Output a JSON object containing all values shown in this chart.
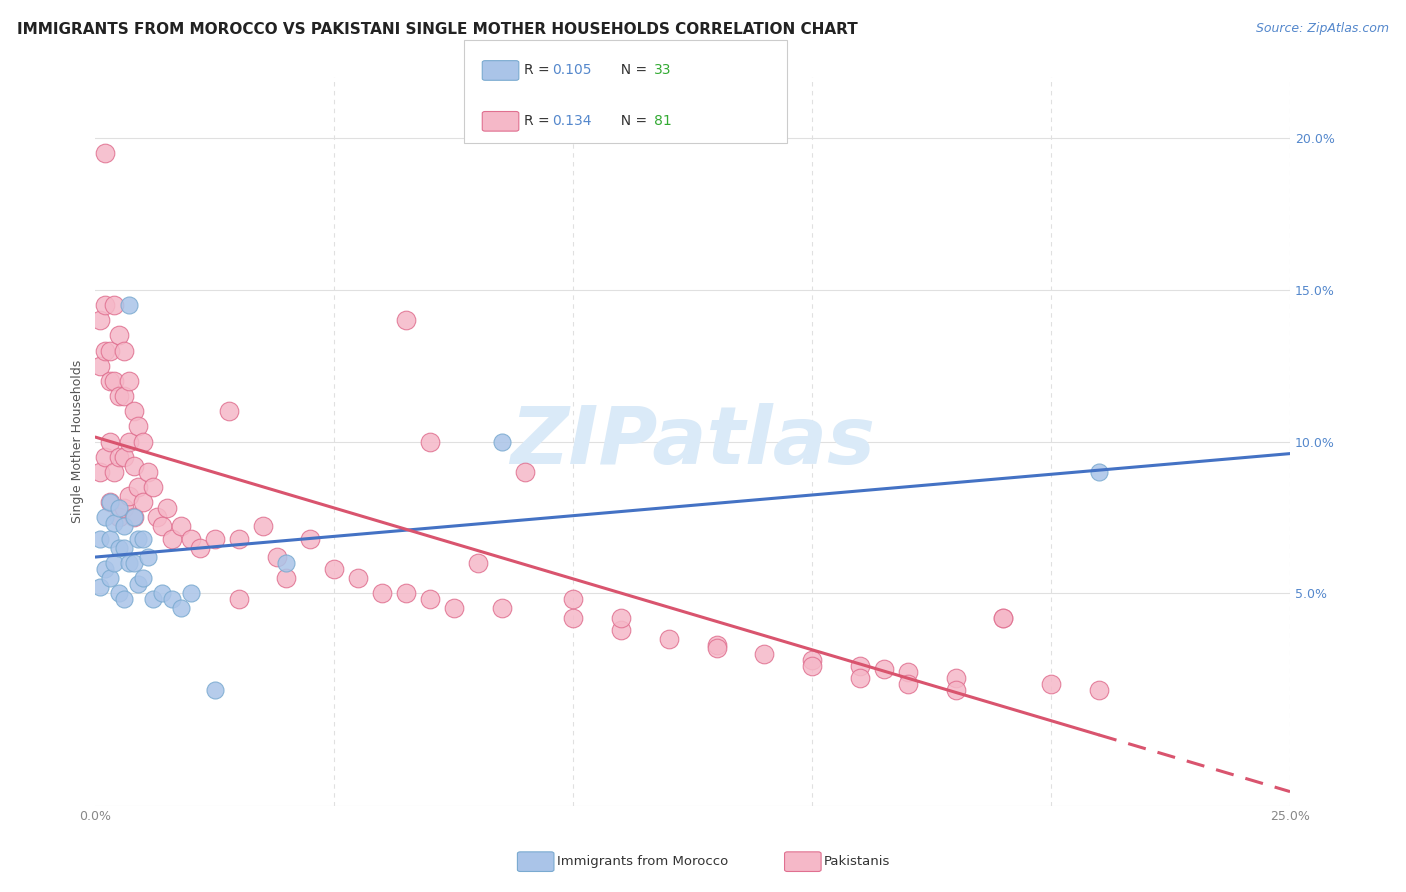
{
  "title": "IMMIGRANTS FROM MOROCCO VS PAKISTANI SINGLE MOTHER HOUSEHOLDS CORRELATION CHART",
  "source": "Source: ZipAtlas.com",
  "ylabel": "Single Mother Households",
  "xlim": [
    0.0,
    0.25
  ],
  "ylim": [
    -0.02,
    0.22
  ],
  "legend1_r": "0.105",
  "legend1_n": "33",
  "legend2_r": "0.134",
  "legend2_n": "81",
  "morocco_color": "#aac4e8",
  "pakistan_color": "#f5b8c8",
  "morocco_edge": "#7aaad0",
  "pakistan_edge": "#e07090",
  "trendline_morocco_color": "#4472c4",
  "trendline_pakistan_color": "#d9546e",
  "watermark_color": "#daeaf8",
  "background_color": "#ffffff",
  "grid_color": "#e0e0e0",
  "title_fontsize": 11,
  "tick_fontsize": 9,
  "source_fontsize": 9,
  "morocco_x": [
    0.001,
    0.001,
    0.002,
    0.002,
    0.003,
    0.003,
    0.003,
    0.004,
    0.004,
    0.005,
    0.005,
    0.005,
    0.006,
    0.006,
    0.006,
    0.007,
    0.007,
    0.008,
    0.008,
    0.009,
    0.009,
    0.01,
    0.01,
    0.011,
    0.012,
    0.014,
    0.016,
    0.018,
    0.02,
    0.025,
    0.04,
    0.085,
    0.21
  ],
  "morocco_y": [
    0.068,
    0.052,
    0.075,
    0.058,
    0.08,
    0.068,
    0.055,
    0.073,
    0.06,
    0.078,
    0.065,
    0.05,
    0.072,
    0.065,
    0.048,
    0.145,
    0.06,
    0.075,
    0.06,
    0.068,
    0.053,
    0.068,
    0.055,
    0.062,
    0.048,
    0.05,
    0.048,
    0.045,
    0.05,
    0.018,
    0.06,
    0.1,
    0.09
  ],
  "pakistan_x": [
    0.001,
    0.001,
    0.001,
    0.002,
    0.002,
    0.002,
    0.002,
    0.003,
    0.003,
    0.003,
    0.003,
    0.004,
    0.004,
    0.004,
    0.005,
    0.005,
    0.005,
    0.005,
    0.006,
    0.006,
    0.006,
    0.006,
    0.007,
    0.007,
    0.007,
    0.008,
    0.008,
    0.008,
    0.009,
    0.009,
    0.01,
    0.01,
    0.011,
    0.012,
    0.013,
    0.014,
    0.015,
    0.016,
    0.018,
    0.02,
    0.022,
    0.025,
    0.028,
    0.03,
    0.035,
    0.038,
    0.04,
    0.045,
    0.05,
    0.055,
    0.06,
    0.065,
    0.07,
    0.075,
    0.08,
    0.085,
    0.09,
    0.1,
    0.11,
    0.12,
    0.13,
    0.14,
    0.15,
    0.16,
    0.165,
    0.17,
    0.18,
    0.19,
    0.2,
    0.21,
    0.03,
    0.065,
    0.07,
    0.1,
    0.11,
    0.13,
    0.15,
    0.16,
    0.17,
    0.18,
    0.19
  ],
  "pakistan_y": [
    0.14,
    0.125,
    0.09,
    0.195,
    0.145,
    0.13,
    0.095,
    0.13,
    0.12,
    0.1,
    0.08,
    0.145,
    0.12,
    0.09,
    0.135,
    0.115,
    0.095,
    0.075,
    0.13,
    0.115,
    0.095,
    0.078,
    0.12,
    0.1,
    0.082,
    0.11,
    0.092,
    0.075,
    0.105,
    0.085,
    0.1,
    0.08,
    0.09,
    0.085,
    0.075,
    0.072,
    0.078,
    0.068,
    0.072,
    0.068,
    0.065,
    0.068,
    0.11,
    0.068,
    0.072,
    0.062,
    0.055,
    0.068,
    0.058,
    0.055,
    0.05,
    0.05,
    0.048,
    0.045,
    0.06,
    0.045,
    0.09,
    0.042,
    0.038,
    0.035,
    0.033,
    0.03,
    0.028,
    0.026,
    0.025,
    0.024,
    0.022,
    0.042,
    0.02,
    0.018,
    0.048,
    0.14,
    0.1,
    0.048,
    0.042,
    0.032,
    0.026,
    0.022,
    0.02,
    0.018,
    0.042
  ]
}
